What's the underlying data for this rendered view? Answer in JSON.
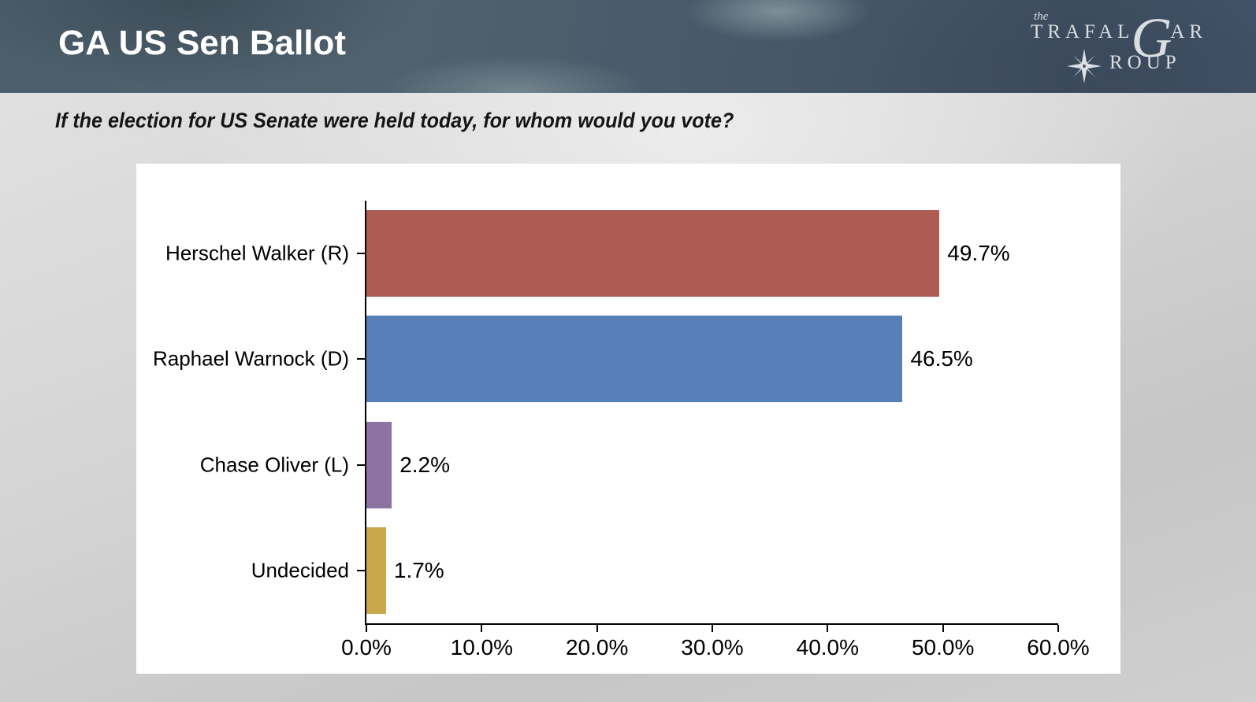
{
  "header": {
    "title": "GA US Sen Ballot",
    "logo": {
      "the": "the",
      "trafal": "TRAFAL",
      "g": "G",
      "ar": "AR",
      "roup": "ROUP"
    }
  },
  "question": "If the election for US Senate were held today, for whom would you vote?",
  "chart_data": {
    "type": "bar",
    "orientation": "horizontal",
    "title": "",
    "xlabel": "",
    "ylabel": "",
    "categories": [
      "Herschel Walker (R)",
      "Raphael Warnock (D)",
      "Chase Oliver (L)",
      "Undecided"
    ],
    "values": [
      49.7,
      46.5,
      2.2,
      1.7
    ],
    "value_labels": [
      "49.7%",
      "46.5%",
      "2.2%",
      "1.7%"
    ],
    "bar_colors": [
      "#AE5C53",
      "#5780B9",
      "#8C73A2",
      "#C9A84C"
    ],
    "xlim": [
      0,
      60
    ],
    "x_ticks": [
      0,
      10,
      20,
      30,
      40,
      50,
      60
    ],
    "x_tick_labels": [
      "0.0%",
      "10.0%",
      "20.0%",
      "30.0%",
      "40.0%",
      "50.0%",
      "60.0%"
    ],
    "grid": false,
    "legend_position": "none",
    "plot_background": "#FFFFFF"
  },
  "colors": {
    "header_base": "#47586A",
    "title_text": "#FFFFFF",
    "logo_text": "#D9DEE2",
    "page_bg_light": "#E3E3E3",
    "page_bg_dark": "#C6C6C6",
    "axis": "#000000",
    "question_text": "#151515"
  }
}
